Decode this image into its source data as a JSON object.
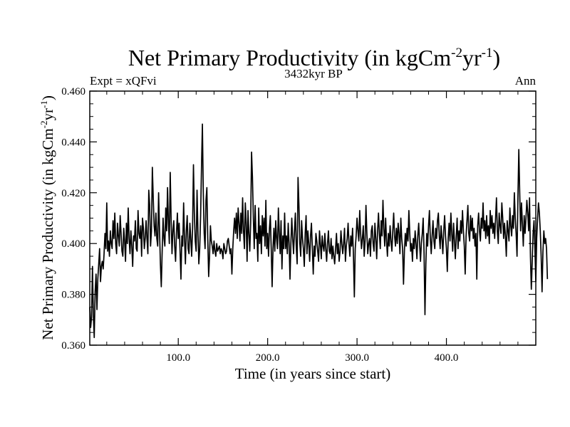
{
  "chart_data": {
    "type": "line",
    "title": "Net Primary Productivity (in kgCm",
    "title_sup1": "-2",
    "title_mid": "yr",
    "title_sup2": "-1",
    "title_end": ")",
    "subtitle_left": "Expt = xQFvi",
    "subtitle_center": "3432kyr BP",
    "subtitle_right": "Ann",
    "xlabel": "Time (in years since start)",
    "ylabel_main": "Net Primary Productivity (in kgCm",
    "ylabel_sup1": "-2",
    "ylabel_mid": "yr",
    "ylabel_sup2": "-1",
    "ylabel_end": ")",
    "xlim": [
      1,
      500
    ],
    "ylim": [
      0.36,
      0.46
    ],
    "x_ticks": [
      100,
      200,
      300,
      400
    ],
    "x_tick_labels": [
      "100.0",
      "200.0",
      "300.0",
      "400.0"
    ],
    "y_ticks": [
      0.36,
      0.38,
      0.4,
      0.42,
      0.44,
      0.46
    ],
    "y_tick_labels": [
      "0.360",
      "0.380",
      "0.400",
      "0.420",
      "0.440",
      "0.460"
    ],
    "grid": false,
    "series": [
      {
        "name": "Net Primary Productivity",
        "x_start": 1,
        "x_step": 1,
        "color": "#000000",
        "values": [
          0.375,
          0.367,
          0.371,
          0.391,
          0.372,
          0.363,
          0.381,
          0.388,
          0.374,
          0.386,
          0.392,
          0.398,
          0.385,
          0.391,
          0.393,
          0.39,
          0.396,
          0.404,
          0.398,
          0.416,
          0.397,
          0.401,
          0.395,
          0.405,
          0.4,
          0.398,
          0.409,
          0.402,
          0.412,
          0.4,
          0.396,
          0.408,
          0.403,
          0.399,
          0.411,
          0.404,
          0.397,
          0.395,
          0.406,
          0.401,
          0.393,
          0.408,
          0.4,
          0.414,
          0.402,
          0.396,
          0.405,
          0.399,
          0.391,
          0.403,
          0.401,
          0.409,
          0.398,
          0.397,
          0.413,
          0.404,
          0.402,
          0.407,
          0.395,
          0.41,
          0.406,
          0.398,
          0.402,
          0.409,
          0.402,
          0.396,
          0.421,
          0.415,
          0.399,
          0.405,
          0.43,
          0.418,
          0.407,
          0.403,
          0.412,
          0.402,
          0.399,
          0.42,
          0.406,
          0.392,
          0.383,
          0.397,
          0.41,
          0.402,
          0.399,
          0.414,
          0.405,
          0.422,
          0.408,
          0.4,
          0.428,
          0.41,
          0.396,
          0.405,
          0.409,
          0.399,
          0.393,
          0.404,
          0.412,
          0.402,
          0.408,
          0.397,
          0.386,
          0.403,
          0.399,
          0.416,
          0.402,
          0.392,
          0.405,
          0.411,
          0.398,
          0.396,
          0.408,
          0.402,
          0.395,
          0.406,
          0.431,
          0.412,
          0.401,
          0.397,
          0.421,
          0.405,
          0.392,
          0.398,
          0.411,
          0.43,
          0.447,
          0.42,
          0.404,
          0.398,
          0.417,
          0.422,
          0.402,
          0.387,
          0.395,
          0.407,
          0.401,
          0.399,
          0.396,
          0.401,
          0.397,
          0.395,
          0.4,
          0.397,
          0.398,
          0.399,
          0.396,
          0.398,
          0.397,
          0.394,
          0.4,
          0.398,
          0.396,
          0.397,
          0.401,
          0.402,
          0.399,
          0.396,
          0.398,
          0.388,
          0.398,
          0.405,
          0.41,
          0.404,
          0.412,
          0.402,
          0.414,
          0.408,
          0.401,
          0.412,
          0.404,
          0.418,
          0.405,
          0.398,
          0.416,
          0.408,
          0.393,
          0.413,
          0.404,
          0.397,
          0.408,
          0.436,
          0.426,
          0.41,
          0.398,
          0.415,
          0.402,
          0.404,
          0.393,
          0.414,
          0.4,
          0.407,
          0.396,
          0.411,
          0.403,
          0.41,
          0.399,
          0.417,
          0.398,
          0.404,
          0.395,
          0.406,
          0.411,
          0.398,
          0.383,
          0.398,
          0.406,
          0.397,
          0.409,
          0.402,
          0.398,
          0.414,
          0.404,
          0.396,
          0.409,
          0.39,
          0.403,
          0.398,
          0.412,
          0.398,
          0.403,
          0.396,
          0.408,
          0.4,
          0.386,
          0.4,
          0.41,
          0.402,
          0.396,
          0.405,
          0.412,
          0.399,
          0.392,
          0.426,
          0.415,
          0.4,
          0.395,
          0.409,
          0.402,
          0.398,
          0.391,
          0.404,
          0.411,
          0.396,
          0.405,
          0.4,
          0.393,
          0.403,
          0.408,
          0.398,
          0.388,
          0.399,
          0.395,
          0.404,
          0.401,
          0.397,
          0.393,
          0.405,
          0.4,
          0.394,
          0.403,
          0.399,
          0.397,
          0.404,
          0.398,
          0.393,
          0.4,
          0.405,
          0.397,
          0.396,
          0.402,
          0.394,
          0.399,
          0.395,
          0.392,
          0.398,
          0.404,
          0.396,
          0.4,
          0.393,
          0.397,
          0.405,
          0.4,
          0.396,
          0.4,
          0.406,
          0.393,
          0.399,
          0.402,
          0.408,
          0.4,
          0.395,
          0.403,
          0.399,
          0.406,
          0.395,
          0.379,
          0.398,
          0.403,
          0.41,
          0.405,
          0.401,
          0.413,
          0.404,
          0.398,
          0.402,
          0.407,
          0.395,
          0.401,
          0.415,
          0.404,
          0.396,
          0.4,
          0.402,
          0.395,
          0.405,
          0.407,
          0.4,
          0.397,
          0.408,
          0.402,
          0.394,
          0.405,
          0.412,
          0.404,
          0.398,
          0.409,
          0.403,
          0.417,
          0.406,
          0.399,
          0.41,
          0.401,
          0.395,
          0.404,
          0.399,
          0.407,
          0.401,
          0.397,
          0.405,
          0.412,
          0.403,
          0.399,
          0.406,
          0.4,
          0.408,
          0.404,
          0.396,
          0.41,
          0.402,
          0.398,
          0.384,
          0.397,
          0.404,
          0.399,
          0.406,
          0.401,
          0.413,
          0.404,
          0.397,
          0.4,
          0.393,
          0.402,
          0.398,
          0.405,
          0.4,
          0.394,
          0.403,
          0.408,
          0.4,
          0.393,
          0.4,
          0.404,
          0.41,
          0.396,
          0.372,
          0.392,
          0.404,
          0.399,
          0.407,
          0.413,
          0.402,
          0.396,
          0.403,
          0.409,
          0.401,
          0.398,
          0.406,
          0.402,
          0.409,
          0.412,
          0.403,
          0.398,
          0.407,
          0.402,
          0.396,
          0.405,
          0.411,
          0.403,
          0.398,
          0.389,
          0.402,
          0.408,
          0.401,
          0.412,
          0.404,
          0.397,
          0.408,
          0.401,
          0.394,
          0.403,
          0.41,
          0.398,
          0.405,
          0.401,
          0.409,
          0.404,
          0.413,
          0.405,
          0.399,
          0.388,
          0.403,
          0.409,
          0.415,
          0.404,
          0.401,
          0.411,
          0.405,
          0.41,
          0.402,
          0.406,
          0.399,
          0.404,
          0.386,
          0.407,
          0.412,
          0.405,
          0.401,
          0.41,
          0.406,
          0.416,
          0.405,
          0.409,
          0.402,
          0.411,
          0.403,
          0.407,
          0.4,
          0.413,
          0.406,
          0.411,
          0.404,
          0.408,
          0.402,
          0.41,
          0.418,
          0.405,
          0.4,
          0.412,
          0.407,
          0.404,
          0.416,
          0.41,
          0.402,
          0.408,
          0.403,
          0.395,
          0.409,
          0.405,
          0.401,
          0.414,
          0.407,
          0.403,
          0.411,
          0.406,
          0.42,
          0.41,
          0.404,
          0.395,
          0.418,
          0.437,
          0.42,
          0.405,
          0.416,
          0.408,
          0.399,
          0.411,
          0.404,
          0.41,
          0.417,
          0.412,
          0.405,
          0.418,
          0.395,
          0.382,
          0.393,
          0.404,
          0.409,
          0.398,
          0.385,
          0.402,
          0.41,
          0.416,
          0.412,
          0.405,
          0.395,
          0.381,
          0.397,
          0.405,
          0.4,
          0.402,
          0.398,
          0.386
        ]
      }
    ]
  }
}
